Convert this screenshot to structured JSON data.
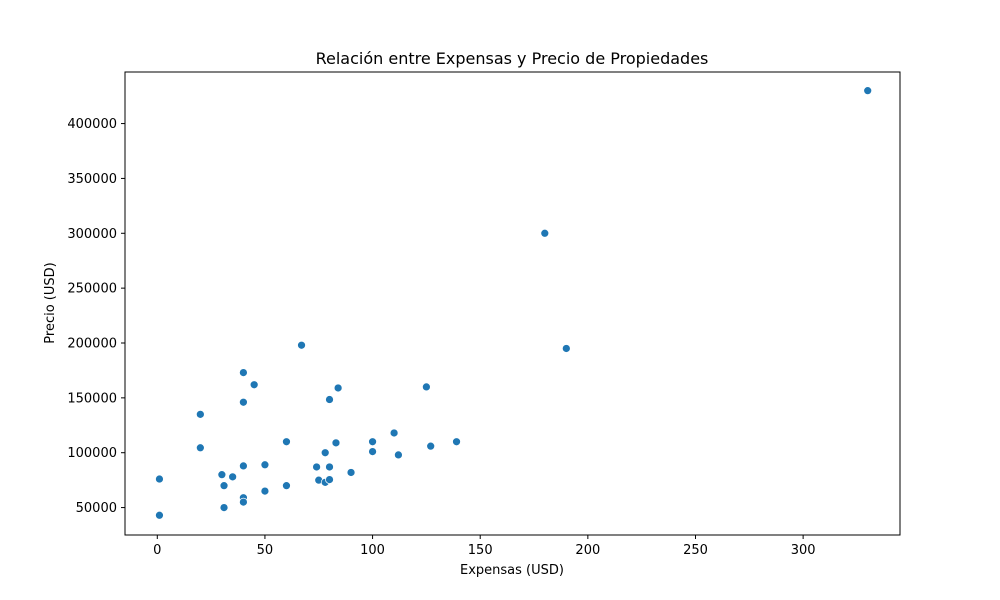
{
  "chart_data": {
    "type": "scatter",
    "title": "Relación entre Expensas y Precio de Propiedades",
    "xlabel": "Expensas (USD)",
    "ylabel": "Precio (USD)",
    "xlim": [
      -15,
      345
    ],
    "ylim": [
      25000,
      447000
    ],
    "xticks": [
      0,
      50,
      100,
      150,
      200,
      250,
      300
    ],
    "yticks": [
      50000,
      100000,
      150000,
      200000,
      250000,
      300000,
      350000,
      400000
    ],
    "grid": false,
    "color": "#1f77b4",
    "points": [
      {
        "x": 1,
        "y": 43000
      },
      {
        "x": 1,
        "y": 76000
      },
      {
        "x": 20,
        "y": 135000
      },
      {
        "x": 20,
        "y": 104500
      },
      {
        "x": 30,
        "y": 80000
      },
      {
        "x": 31,
        "y": 70000
      },
      {
        "x": 31,
        "y": 50000
      },
      {
        "x": 35,
        "y": 78000
      },
      {
        "x": 40,
        "y": 173000
      },
      {
        "x": 40,
        "y": 146000
      },
      {
        "x": 40,
        "y": 88000
      },
      {
        "x": 40,
        "y": 59000
      },
      {
        "x": 40,
        "y": 55000
      },
      {
        "x": 45,
        "y": 162000
      },
      {
        "x": 50,
        "y": 89000
      },
      {
        "x": 50,
        "y": 65000
      },
      {
        "x": 60,
        "y": 110000
      },
      {
        "x": 60,
        "y": 70000
      },
      {
        "x": 67,
        "y": 198000
      },
      {
        "x": 74,
        "y": 87000
      },
      {
        "x": 75,
        "y": 75000
      },
      {
        "x": 78,
        "y": 100000
      },
      {
        "x": 78,
        "y": 73000
      },
      {
        "x": 80,
        "y": 148500
      },
      {
        "x": 80,
        "y": 87000
      },
      {
        "x": 80,
        "y": 75500
      },
      {
        "x": 83,
        "y": 109000
      },
      {
        "x": 84,
        "y": 159000
      },
      {
        "x": 90,
        "y": 82000
      },
      {
        "x": 100,
        "y": 110000
      },
      {
        "x": 100,
        "y": 101000
      },
      {
        "x": 110,
        "y": 118000
      },
      {
        "x": 112,
        "y": 98000
      },
      {
        "x": 125,
        "y": 160000
      },
      {
        "x": 127,
        "y": 106000
      },
      {
        "x": 139,
        "y": 110000
      },
      {
        "x": 180,
        "y": 300000
      },
      {
        "x": 190,
        "y": 195000
      },
      {
        "x": 330,
        "y": 430000
      }
    ]
  }
}
